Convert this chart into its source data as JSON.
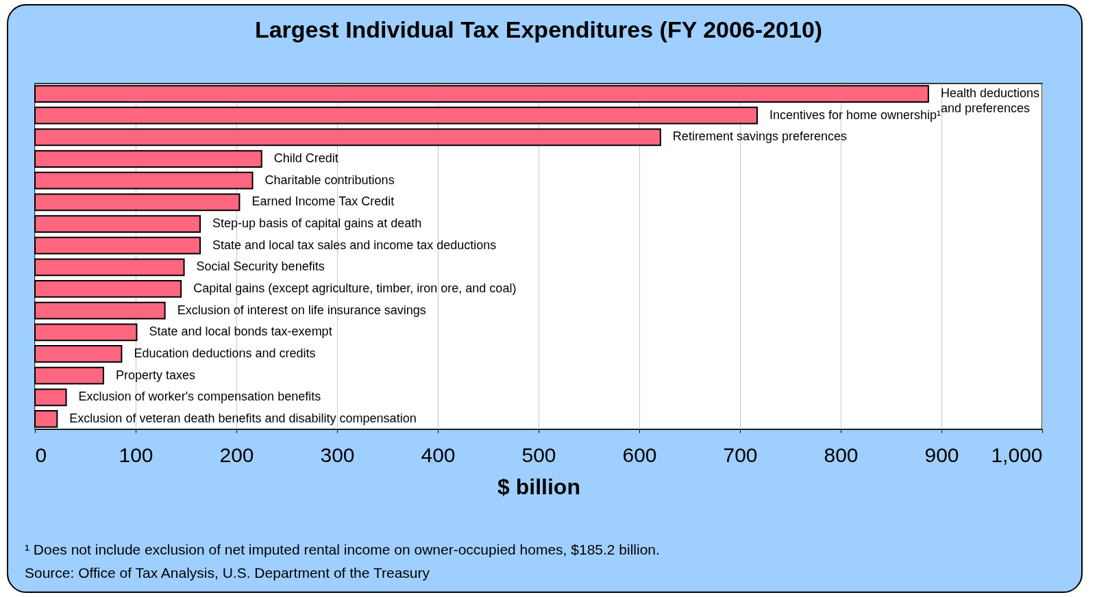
{
  "chart_data": {
    "type": "bar",
    "orientation": "horizontal",
    "title": "Largest Individual Tax Expenditures (FY 2006-2010)",
    "xlabel": "$ billion",
    "categories": [
      "Health deductions and preferences",
      "Incentives for home ownership¹",
      "Retirement savings preferences",
      "Child Credit",
      "Charitable contributions",
      "Earned Income Tax Credit",
      "Step-up basis of capital gains at death",
      "State and local tax sales and income tax deductions",
      "Social Security benefits",
      "Capital gains (except agriculture, timber, iron ore, and coal)",
      "Exclusion of interest on life insurance savings",
      "State and local bonds tax-exempt",
      "Education deductions and credits",
      "Property taxes",
      "Exclusion of worker's compensation benefits",
      "Exclusion of veteran death benefits and disability compensation"
    ],
    "values": [
      887,
      717,
      621,
      225,
      216,
      203,
      164,
      164,
      148,
      145,
      129,
      101,
      86,
      68,
      31,
      22
    ],
    "color": "#ff6680",
    "xlim": [
      0,
      1000
    ],
    "xticks": [
      0,
      100,
      200,
      300,
      400,
      500,
      600,
      700,
      800,
      900,
      {
        "value": 1000,
        "label": "1,000"
      }
    ],
    "grid": "x",
    "tick_labels": "x",
    "annotations": [
      "¹ Does not include exclusion of net imputed rental income on owner-occupied homes, $185.2 billion.",
      "Source: Office of Tax Analysis, U.S. Department of the Treasury"
    ]
  }
}
